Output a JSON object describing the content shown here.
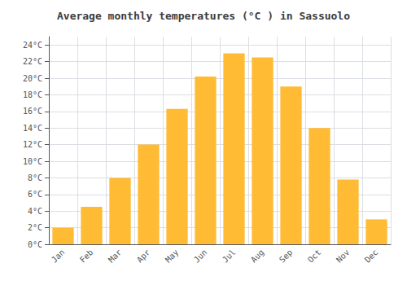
{
  "chart_data": {
    "type": "bar",
    "title": "Average monthly temperatures (°C ) in Sassuolo",
    "categories": [
      "Jan",
      "Feb",
      "Mar",
      "Apr",
      "May",
      "Jun",
      "Jul",
      "Aug",
      "Sep",
      "Oct",
      "Nov",
      "Dec"
    ],
    "values": [
      2,
      4.5,
      8,
      12,
      16.3,
      20.2,
      23,
      22.5,
      19,
      14,
      7.8,
      3
    ],
    "color": "#FFBB33",
    "ylim": [
      0,
      25
    ],
    "yticks": [
      {
        "value": 0,
        "label": "0°C"
      },
      {
        "value": 2,
        "label": "2°C"
      },
      {
        "value": 4,
        "label": "4°C"
      },
      {
        "value": 6,
        "label": "6°C"
      },
      {
        "value": 8,
        "label": "8°C"
      },
      {
        "value": 10,
        "label": "10°C"
      },
      {
        "value": 12,
        "label": "12°C"
      },
      {
        "value": 14,
        "label": "14°C"
      },
      {
        "value": 16,
        "label": "16°C"
      },
      {
        "value": 18,
        "label": "18°C"
      },
      {
        "value": 20,
        "label": "20°C"
      },
      {
        "value": 22,
        "label": "22°C"
      },
      {
        "value": 24,
        "label": "24°C"
      }
    ],
    "grid": true
  }
}
